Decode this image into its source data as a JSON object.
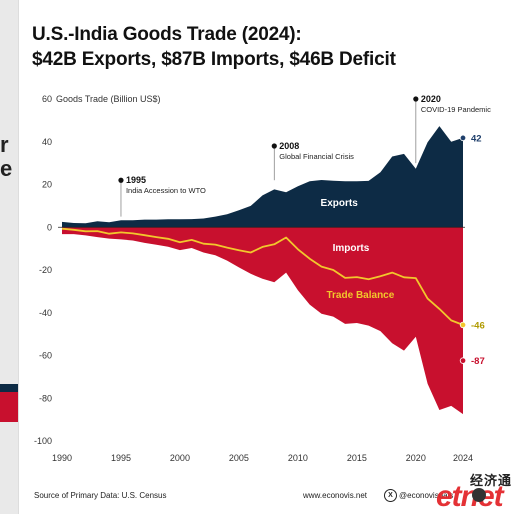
{
  "title": {
    "line1": "U.S.-India Goods Trade (2024):",
    "line2": "$42B Exports, $87B Imports, $46B Deficit"
  },
  "chart_data": {
    "type": "area",
    "ylabel": "Goods Trade (Billion US$)",
    "ylim": [
      -100,
      60
    ],
    "yticks": [
      60,
      40,
      20,
      0,
      -20,
      -40,
      -60,
      -80,
      -100
    ],
    "xlim": [
      1990,
      2024
    ],
    "xticks": [
      1990,
      1995,
      2000,
      2005,
      2010,
      2015,
      2020,
      2024
    ],
    "x": [
      1990,
      1991,
      1992,
      1993,
      1994,
      1995,
      1996,
      1997,
      1998,
      1999,
      2000,
      2001,
      2002,
      2003,
      2004,
      2005,
      2006,
      2007,
      2008,
      2009,
      2010,
      2011,
      2012,
      2013,
      2014,
      2015,
      2016,
      2017,
      2018,
      2019,
      2020,
      2021,
      2022,
      2023,
      2024
    ],
    "series": [
      {
        "name": "Exports",
        "values": [
          2.5,
          2.0,
          1.9,
          2.8,
          2.3,
          3.3,
          3.3,
          3.6,
          3.6,
          3.7,
          3.7,
          3.8,
          4.1,
          5.0,
          6.1,
          8.0,
          10.0,
          14.9,
          17.7,
          16.4,
          19.2,
          21.5,
          22.1,
          21.8,
          21.5,
          21.5,
          21.7,
          25.7,
          33.1,
          34.3,
          27.4,
          39.8,
          47.3,
          40.0,
          41.8
        ]
      },
      {
        "name": "Imports",
        "values": [
          -3.2,
          -3.2,
          -3.8,
          -4.6,
          -5.3,
          -5.7,
          -6.2,
          -7.3,
          -8.2,
          -9.1,
          -10.7,
          -9.7,
          -11.8,
          -13.1,
          -15.6,
          -18.8,
          -21.8,
          -24.1,
          -25.7,
          -21.2,
          -29.5,
          -36.2,
          -40.5,
          -41.8,
          -45.2,
          -44.8,
          -46.0,
          -48.6,
          -54.3,
          -57.7,
          -51.2,
          -73.2,
          -85.5,
          -83.6,
          -87.4
        ]
      },
      {
        "name": "Trade Balance",
        "values": [
          -0.7,
          -1.2,
          -1.9,
          -1.8,
          -3.0,
          -2.4,
          -2.9,
          -3.7,
          -4.6,
          -5.4,
          -7.0,
          -5.9,
          -7.7,
          -8.1,
          -9.5,
          -10.8,
          -11.8,
          -9.2,
          -8.0,
          -4.8,
          -10.3,
          -14.7,
          -18.4,
          -20.0,
          -23.7,
          -23.3,
          -24.3,
          -22.9,
          -21.2,
          -23.4,
          -23.8,
          -33.4,
          -38.2,
          -43.6,
          -45.7
        ]
      }
    ],
    "end_labels": {
      "exports": "42",
      "imports": "-87",
      "balance": "-46"
    },
    "annotations": [
      {
        "year": "1995",
        "text": "India Accession to WTO"
      },
      {
        "year": "2008",
        "text": "Global Financial Crisis"
      },
      {
        "year": "2020",
        "text": "COVID-19 Pandemic"
      }
    ],
    "grid": false,
    "legend": "none"
  },
  "colors": {
    "exports": "#0d2b45",
    "imports": "#c8102e",
    "balance_line": "#f2c72c",
    "exports_label": "#1f3f6b",
    "balance_label": "#b09a00",
    "imports_label": "#c8102e"
  },
  "footer": {
    "source": "Source of Primary Data: U.S. Census",
    "website": "www.econovis.net",
    "handle": "@econovisuals"
  },
  "watermark": {
    "chinese": "经济通",
    "logo": "etnet"
  },
  "edge": {
    "char1": "r",
    "char2": "e"
  }
}
